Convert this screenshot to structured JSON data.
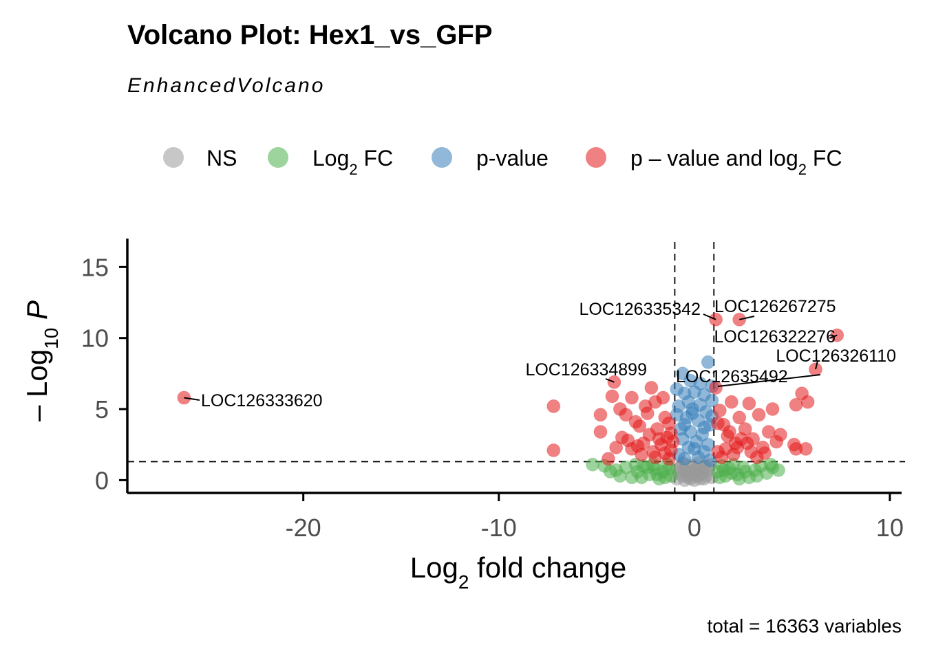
{
  "chart_data": {
    "type": "scatter",
    "title": "Volcano Plot: Hex1_vs_GFP",
    "subtitle": "EnhancedVolcano",
    "caption": "total = 16363 variables",
    "xlabel": {
      "base": "Log",
      "sub": "2",
      "rest": " fold change"
    },
    "ylabel": {
      "prefix": "– Log",
      "sub": "10",
      "italic": " P"
    },
    "xlim": [
      -29,
      10.6
    ],
    "ylim": [
      -0.9,
      17
    ],
    "xticks": [
      -20,
      -10,
      0,
      10
    ],
    "xtick_labels": [
      "-20",
      "-10",
      "0",
      "10"
    ],
    "yticks": [
      0,
      5,
      10,
      15
    ],
    "ytick_labels": [
      "0",
      "5",
      "10",
      "15"
    ],
    "cutoffs": {
      "fc": [
        -1,
        1
      ],
      "p": 1.3
    },
    "legend": [
      {
        "key": "NS",
        "label": "NS",
        "color": "#999999"
      },
      {
        "key": "FC",
        "label": "Log",
        "sub": "2",
        "rest": " FC",
        "color": "#4daf4a"
      },
      {
        "key": "P",
        "label": "p-value",
        "color": "#377eb8"
      },
      {
        "key": "FCP",
        "label": "p – value and log",
        "sub": "2",
        "rest": " FC",
        "color": "#e41a1c"
      }
    ],
    "labeled_points": [
      {
        "label": "LOC126333620",
        "x": -26.1,
        "y": 5.8
      },
      {
        "label": "LOC126334899",
        "x": -4.1,
        "y": 6.9
      },
      {
        "label": "LOC126335342",
        "x": 1.1,
        "y": 11.3
      },
      {
        "label": "LOC126267275",
        "x": 2.3,
        "y": 11.3
      },
      {
        "label": "LOC126322276",
        "x": 7.3,
        "y": 10.2
      },
      {
        "label": "LOC126326110",
        "x": 6.2,
        "y": 7.8
      },
      {
        "label": "LOC12635492",
        "x": 1.2,
        "y": 6.6
      }
    ],
    "points": {
      "FCP": [
        [
          -7.2,
          5.2
        ],
        [
          -7.2,
          2.1
        ],
        [
          -4.8,
          4.6
        ],
        [
          -4.2,
          5.9
        ],
        [
          -3.8,
          5.0
        ],
        [
          -3.5,
          4.6
        ],
        [
          -3.2,
          5.8
        ],
        [
          -3.0,
          4.1
        ],
        [
          -2.8,
          3.8
        ],
        [
          -2.5,
          5.2
        ],
        [
          -2.2,
          6.5
        ],
        [
          -2.0,
          5.5
        ],
        [
          -1.6,
          5.8
        ],
        [
          -1.5,
          4.4
        ],
        [
          -1.3,
          4.0
        ],
        [
          -3.2,
          2.2
        ],
        [
          -2.6,
          2.6
        ],
        [
          -2.1,
          2.0
        ],
        [
          -1.7,
          2.5
        ],
        [
          -1.2,
          2.1
        ],
        [
          -4.4,
          1.5
        ],
        [
          -3.7,
          3.0
        ],
        [
          -2.9,
          2.4
        ],
        [
          -2.3,
          3.2
        ],
        [
          -1.9,
          3.6
        ],
        [
          -1.4,
          3.0
        ],
        [
          -3.4,
          2.8
        ],
        [
          -2.7,
          1.8
        ],
        [
          -2.0,
          1.6
        ],
        [
          -1.5,
          1.9
        ],
        [
          -1.1,
          2.7
        ],
        [
          -4.8,
          3.4
        ],
        [
          -4.0,
          2.3
        ],
        [
          -2.4,
          4.7
        ],
        [
          -1.8,
          2.9
        ],
        [
          -1.3,
          1.5
        ],
        [
          1.1,
          6.5
        ],
        [
          1.3,
          4.9
        ],
        [
          1.5,
          3.9
        ],
        [
          1.7,
          3.1
        ],
        [
          1.9,
          5.5
        ],
        [
          2.1,
          2.6
        ],
        [
          2.3,
          4.4
        ],
        [
          2.6,
          3.6
        ],
        [
          2.8,
          5.4
        ],
        [
          3.0,
          2.9
        ],
        [
          3.3,
          4.6
        ],
        [
          3.5,
          2.3
        ],
        [
          3.8,
          3.4
        ],
        [
          4.0,
          5.0
        ],
        [
          4.2,
          2.7
        ],
        [
          4.4,
          3.2
        ],
        [
          1.2,
          2.0
        ],
        [
          1.6,
          2.2
        ],
        [
          2.0,
          1.8
        ],
        [
          2.4,
          2.9
        ],
        [
          2.9,
          2.0
        ],
        [
          3.2,
          1.6
        ],
        [
          3.6,
          1.9
        ],
        [
          1.4,
          1.6
        ],
        [
          1.8,
          3.4
        ],
        [
          2.2,
          2.3
        ],
        [
          2.7,
          2.6
        ],
        [
          5.1,
          2.5
        ],
        [
          5.2,
          2.2
        ],
        [
          5.2,
          5.3
        ],
        [
          5.5,
          6.1
        ],
        [
          5.7,
          2.2
        ],
        [
          5.8,
          5.5
        ],
        [
          6.2,
          7.8
        ],
        [
          7.3,
          10.2
        ],
        [
          -26.1,
          5.8
        ],
        [
          -4.1,
          6.9
        ],
        [
          1.1,
          11.3
        ],
        [
          2.3,
          11.3
        ],
        [
          -1.2,
          3.3
        ],
        [
          1.2,
          4.0
        ]
      ],
      "P": [
        [
          0.7,
          8.3
        ],
        [
          -0.6,
          7.5
        ],
        [
          -0.2,
          7.0
        ],
        [
          0.3,
          6.8
        ],
        [
          -0.5,
          6.1
        ],
        [
          0.5,
          6.0
        ],
        [
          0.9,
          5.6
        ],
        [
          -0.8,
          5.2
        ],
        [
          -0.1,
          5.0
        ],
        [
          0.6,
          4.8
        ],
        [
          -0.4,
          4.4
        ],
        [
          0.2,
          4.2
        ],
        [
          0.8,
          3.9
        ],
        [
          -0.7,
          3.6
        ],
        [
          -0.2,
          3.4
        ],
        [
          0.4,
          3.2
        ],
        [
          -0.6,
          2.9
        ],
        [
          0.1,
          2.7
        ],
        [
          0.7,
          2.5
        ],
        [
          -0.3,
          2.3
        ],
        [
          0.5,
          2.0
        ],
        [
          -0.8,
          1.8
        ],
        [
          0.2,
          1.6
        ],
        [
          -0.5,
          1.5
        ],
        [
          0.8,
          1.4
        ],
        [
          0.0,
          6.2
        ],
        [
          -0.9,
          6.4
        ],
        [
          0.9,
          6.6
        ],
        [
          -0.3,
          5.5
        ],
        [
          0.3,
          5.3
        ],
        [
          -0.9,
          4.6
        ],
        [
          0.9,
          4.5
        ],
        [
          -0.5,
          3.9
        ],
        [
          0.5,
          3.7
        ],
        [
          -0.1,
          4.7
        ],
        [
          0.0,
          2.2
        ]
      ],
      "FC": [
        [
          -5.2,
          1.1
        ],
        [
          -4.6,
          1.0
        ],
        [
          -4.3,
          0.6
        ],
        [
          -3.8,
          0.3
        ],
        [
          -3.5,
          0.9
        ],
        [
          -3.2,
          0.2
        ],
        [
          -2.9,
          0.6
        ],
        [
          -2.6,
          1.0
        ],
        [
          -2.3,
          0.4
        ],
        [
          -2.0,
          0.8
        ],
        [
          -1.8,
          0.1
        ],
        [
          -1.6,
          0.6
        ],
        [
          -1.4,
          1.1
        ],
        [
          -1.2,
          0.3
        ],
        [
          -4.0,
          0.7
        ],
        [
          -3.0,
          1.1
        ],
        [
          -2.4,
          0.9
        ],
        [
          -1.9,
          0.4
        ],
        [
          -1.3,
          0.8
        ],
        [
          1.2,
          0.6
        ],
        [
          1.4,
          1.0
        ],
        [
          1.6,
          0.3
        ],
        [
          1.8,
          0.8
        ],
        [
          2.0,
          1.1
        ],
        [
          2.2,
          0.4
        ],
        [
          2.5,
          0.9
        ],
        [
          2.8,
          0.2
        ],
        [
          3.1,
          0.7
        ],
        [
          3.4,
          1.0
        ],
        [
          3.7,
          0.5
        ],
        [
          4.0,
          0.9
        ],
        [
          4.3,
          0.7
        ],
        [
          1.3,
          0.2
        ],
        [
          1.9,
          0.5
        ],
        [
          2.6,
          0.6
        ],
        [
          3.2,
          0.3
        ],
        [
          3.9,
          1.1
        ],
        [
          1.5,
          0.7
        ],
        [
          2.3,
          0.1
        ],
        [
          -2.7,
          0.2
        ],
        [
          -2.1,
          1.1
        ],
        [
          -1.5,
          0.2
        ]
      ],
      "NS": [
        [
          -0.9,
          0.1
        ],
        [
          -0.8,
          0.5
        ],
        [
          -0.7,
          0.9
        ],
        [
          -0.6,
          0.3
        ],
        [
          -0.5,
          0.7
        ],
        [
          -0.4,
          1.1
        ],
        [
          -0.3,
          0.2
        ],
        [
          -0.2,
          0.6
        ],
        [
          -0.1,
          1.0
        ],
        [
          0.0,
          0.4
        ],
        [
          0.1,
          0.8
        ],
        [
          0.2,
          1.2
        ],
        [
          0.3,
          0.1
        ],
        [
          0.4,
          0.5
        ],
        [
          0.5,
          0.9
        ],
        [
          0.6,
          0.3
        ],
        [
          0.7,
          0.7
        ],
        [
          0.8,
          1.1
        ],
        [
          0.9,
          0.2
        ],
        [
          -0.9,
          0.8
        ],
        [
          -0.6,
          1.2
        ],
        [
          -0.3,
          0.4
        ],
        [
          0.0,
          0.0
        ],
        [
          0.3,
          0.8
        ],
        [
          0.6,
          1.0
        ],
        [
          -0.2,
          0.1
        ],
        [
          0.2,
          0.3
        ],
        [
          -0.5,
          0.0
        ],
        [
          0.5,
          0.1
        ],
        [
          0.0,
          0.7
        ]
      ]
    }
  }
}
